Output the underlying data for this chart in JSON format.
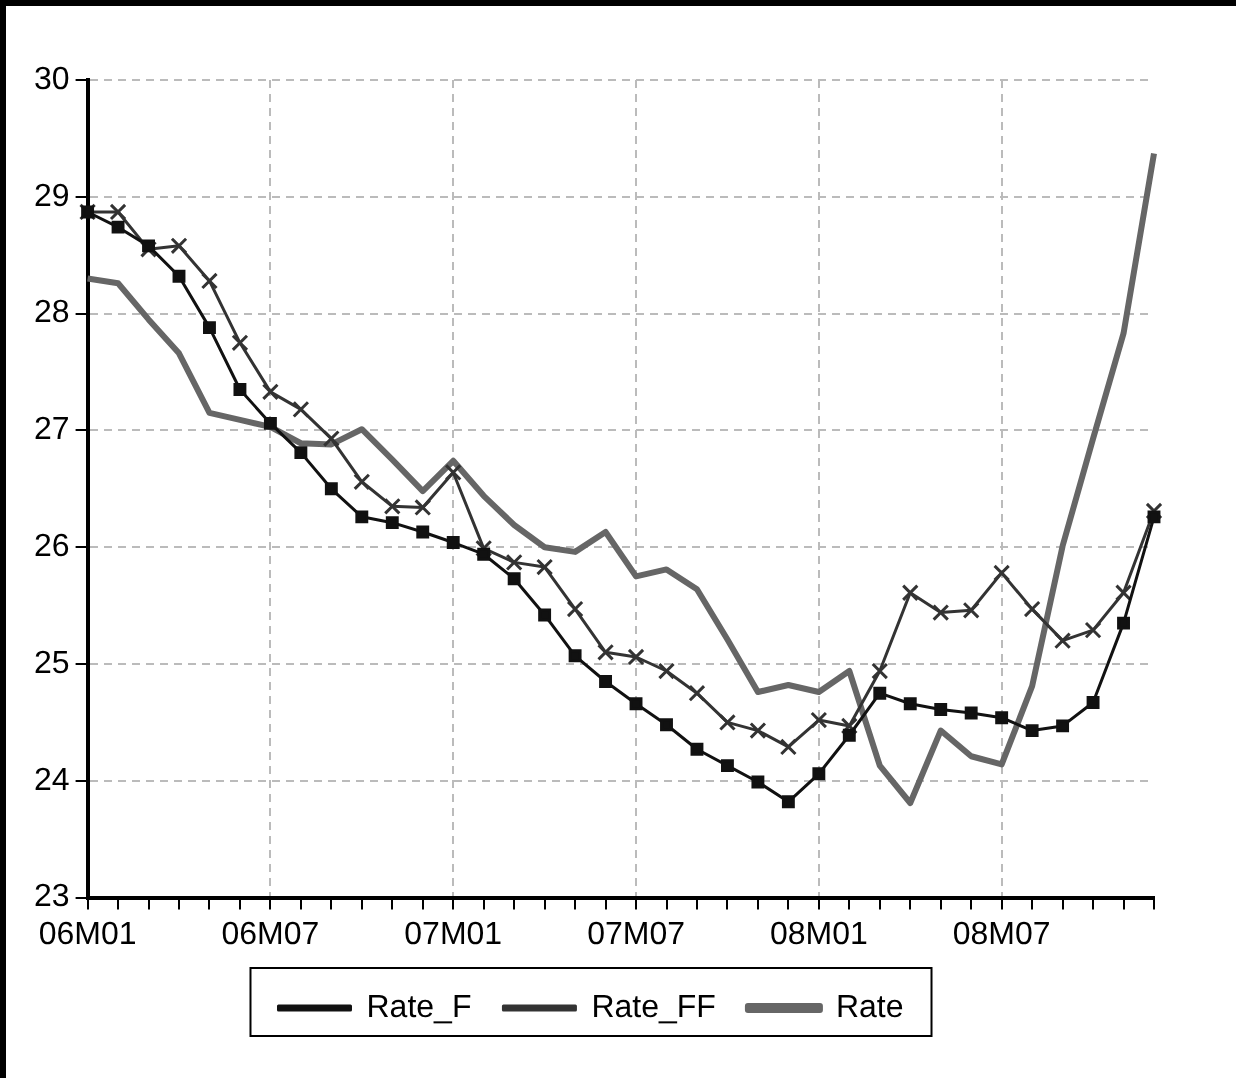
{
  "chart_data": {
    "type": "line",
    "categories": [
      "06M01",
      null,
      null,
      null,
      null,
      null,
      "06M07",
      null,
      null,
      null,
      null,
      null,
      "07M01",
      null,
      null,
      null,
      null,
      null,
      "07M07",
      null,
      null,
      null,
      null,
      null,
      "08M01",
      null,
      null,
      null,
      null,
      null,
      "08M07",
      null,
      null,
      null,
      null,
      null
    ],
    "series": [
      {
        "name": "Rate_F",
        "color": "#111111",
        "marker": "square",
        "values": [
          28.87,
          28.74,
          28.58,
          28.32,
          27.88,
          27.35,
          27.06,
          26.81,
          26.5,
          26.26,
          26.21,
          26.13,
          26.04,
          25.94,
          25.73,
          25.42,
          25.07,
          24.85,
          24.66,
          24.48,
          24.27,
          24.13,
          23.99,
          23.82,
          24.06,
          24.39,
          24.75,
          24.66,
          24.61,
          24.58,
          24.54,
          24.43,
          24.47,
          24.67,
          25.35,
          26.26
        ]
      },
      {
        "name": "Rate_FF",
        "color": "#333333",
        "marker": "cross",
        "values": [
          28.87,
          28.87,
          28.55,
          28.58,
          28.28,
          27.75,
          27.33,
          27.18,
          26.93,
          26.56,
          26.35,
          26.34,
          26.64,
          25.99,
          25.87,
          25.83,
          25.47,
          25.1,
          25.06,
          24.94,
          24.75,
          24.5,
          24.43,
          24.29,
          24.52,
          24.47,
          24.94,
          25.61,
          25.44,
          25.46,
          25.78,
          25.47,
          25.2,
          25.29,
          25.61,
          26.31
        ]
      },
      {
        "name": "Rate",
        "color": "#666666",
        "marker": "none",
        "values": [
          28.3,
          28.26,
          27.95,
          27.66,
          27.15,
          27.09,
          27.03,
          26.89,
          26.88,
          27.01,
          26.75,
          26.48,
          26.74,
          26.44,
          26.19,
          26,
          25.96,
          26.13,
          25.75,
          25.81,
          25.64,
          25.21,
          24.76,
          24.82,
          24.76,
          24.94,
          24.13,
          23.81,
          24.43,
          24.21,
          24.14,
          24.81,
          26.01,
          26.93,
          27.83,
          29.37
        ]
      }
    ],
    "ylim": [
      23,
      30
    ],
    "yticks": [
      23,
      24,
      25,
      26,
      27,
      28,
      29,
      30
    ],
    "grid": true,
    "legend": "bottom",
    "line_style": "solid"
  }
}
